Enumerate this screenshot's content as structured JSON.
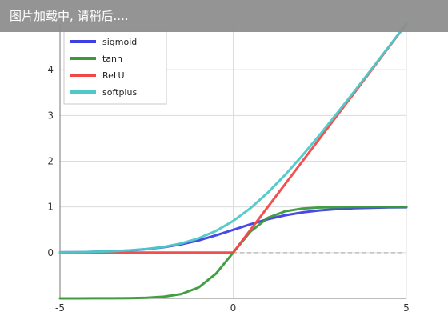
{
  "loading_banner": {
    "text": "图片加载中, 请稍后...."
  },
  "chart_data": {
    "type": "line",
    "title": "",
    "xlabel": "",
    "ylabel": "",
    "xlim": [
      -5,
      5
    ],
    "ylim": [
      -1,
      5
    ],
    "x_ticks": [
      "-5",
      "0",
      "5"
    ],
    "y_ticks": [
      "0",
      "1",
      "2",
      "3",
      "4"
    ],
    "grid": true,
    "legend_position": "top-left",
    "x": [
      -5,
      -4.5,
      -4,
      -3.5,
      -3,
      -2.5,
      -2,
      -1.5,
      -1,
      -0.5,
      0,
      0.5,
      1,
      1.5,
      2,
      2.5,
      3,
      3.5,
      4,
      4.5,
      5
    ],
    "series": [
      {
        "name": "sigmoid",
        "color": "#3f3fe6",
        "values": [
          0.007,
          0.011,
          0.018,
          0.029,
          0.047,
          0.076,
          0.119,
          0.182,
          0.269,
          0.378,
          0.5,
          0.622,
          0.731,
          0.818,
          0.881,
          0.924,
          0.953,
          0.971,
          0.982,
          0.989,
          0.993
        ]
      },
      {
        "name": "tanh",
        "color": "#3a9a3a",
        "values": [
          -1.0,
          -1.0,
          -0.999,
          -0.998,
          -0.995,
          -0.987,
          -0.964,
          -0.905,
          -0.762,
          -0.462,
          0.0,
          0.462,
          0.762,
          0.905,
          0.964,
          0.987,
          0.995,
          0.998,
          0.999,
          1.0,
          1.0
        ]
      },
      {
        "name": "ReLU",
        "color": "#f04848",
        "values": [
          0,
          0,
          0,
          0,
          0,
          0,
          0,
          0,
          0,
          0,
          0,
          0.5,
          1,
          1.5,
          2,
          2.5,
          3,
          3.5,
          4,
          4.5,
          5
        ]
      },
      {
        "name": "softplus",
        "color": "#4fc8c8",
        "values": [
          0.007,
          0.011,
          0.018,
          0.03,
          0.049,
          0.079,
          0.127,
          0.201,
          0.313,
          0.474,
          0.693,
          0.974,
          1.313,
          1.701,
          2.127,
          2.579,
          3.049,
          3.53,
          4.018,
          4.511,
          5.007
        ]
      }
    ],
    "reference_lines": [
      {
        "axis": "y",
        "value": 0,
        "style": "dashed"
      }
    ]
  }
}
